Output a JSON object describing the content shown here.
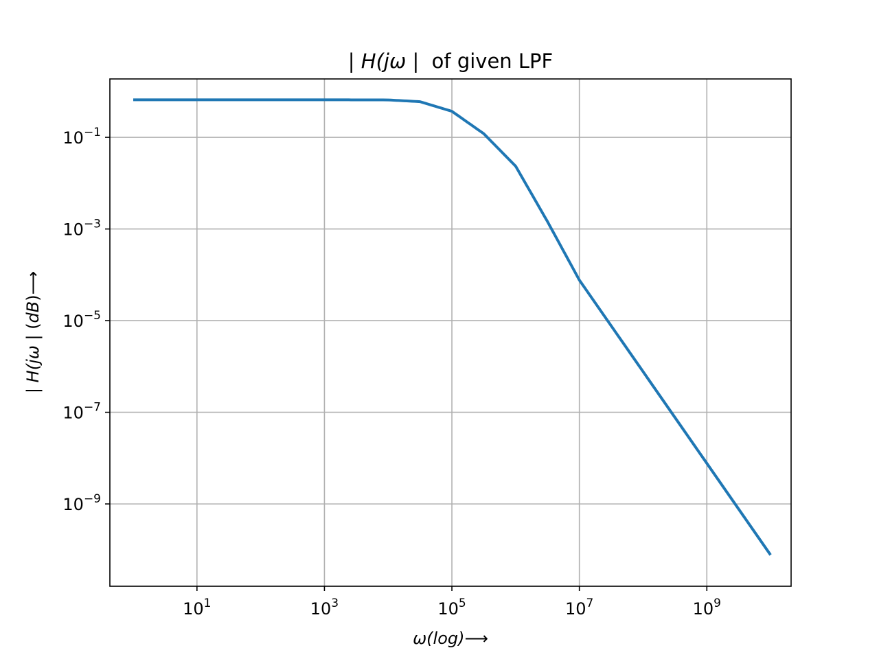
{
  "chart_data": {
    "type": "line",
    "title": {
      "prefix": "| ",
      "italic": "H(jω",
      "suffix": " |  of given LPF"
    },
    "xlabel": {
      "italic": "ω(log)",
      "suffix": "⟶"
    },
    "ylabel": {
      "prefix": "| ",
      "italic1": "H(jω",
      "middle": " | (",
      "italic2": "dB",
      "suffix": ")⟶"
    },
    "x_scale": "log",
    "y_scale": "log",
    "xlim": [
      0.43,
      21000000000
    ],
    "ylim": [
      1.6e-11,
      1.88
    ],
    "grid": true,
    "x_ticks": [
      {
        "base": "10",
        "exp": "1",
        "value": 10
      },
      {
        "base": "10",
        "exp": "3",
        "value": 1000
      },
      {
        "base": "10",
        "exp": "5",
        "value": 100000
      },
      {
        "base": "10",
        "exp": "7",
        "value": 10000000
      },
      {
        "base": "10",
        "exp": "9",
        "value": 1000000000
      }
    ],
    "y_ticks": [
      {
        "base": "10",
        "exp": "−1",
        "value": 0.1
      },
      {
        "base": "10",
        "exp": "−3",
        "value": 0.001
      },
      {
        "base": "10",
        "exp": "−5",
        "value": 1e-05
      },
      {
        "base": "10",
        "exp": "−7",
        "value": 1e-07
      },
      {
        "base": "10",
        "exp": "−9",
        "value": 1e-09
      }
    ],
    "series": [
      {
        "color": "#1f77b4",
        "points": [
          [
            1,
            0.66
          ],
          [
            10,
            0.66
          ],
          [
            100,
            0.66
          ],
          [
            1000,
            0.66
          ],
          [
            10000,
            0.655
          ],
          [
            31623,
            0.6
          ],
          [
            100000,
            0.37
          ],
          [
            316228,
            0.12
          ],
          [
            1000000,
            0.0235
          ],
          [
            3162278,
            0.00145
          ],
          [
            10000000,
            7.67e-05
          ],
          [
            100000000,
            7.7e-07
          ],
          [
            1000000000,
            7.7e-09
          ],
          [
            10000000000,
            7.7e-11
          ]
        ]
      }
    ]
  }
}
